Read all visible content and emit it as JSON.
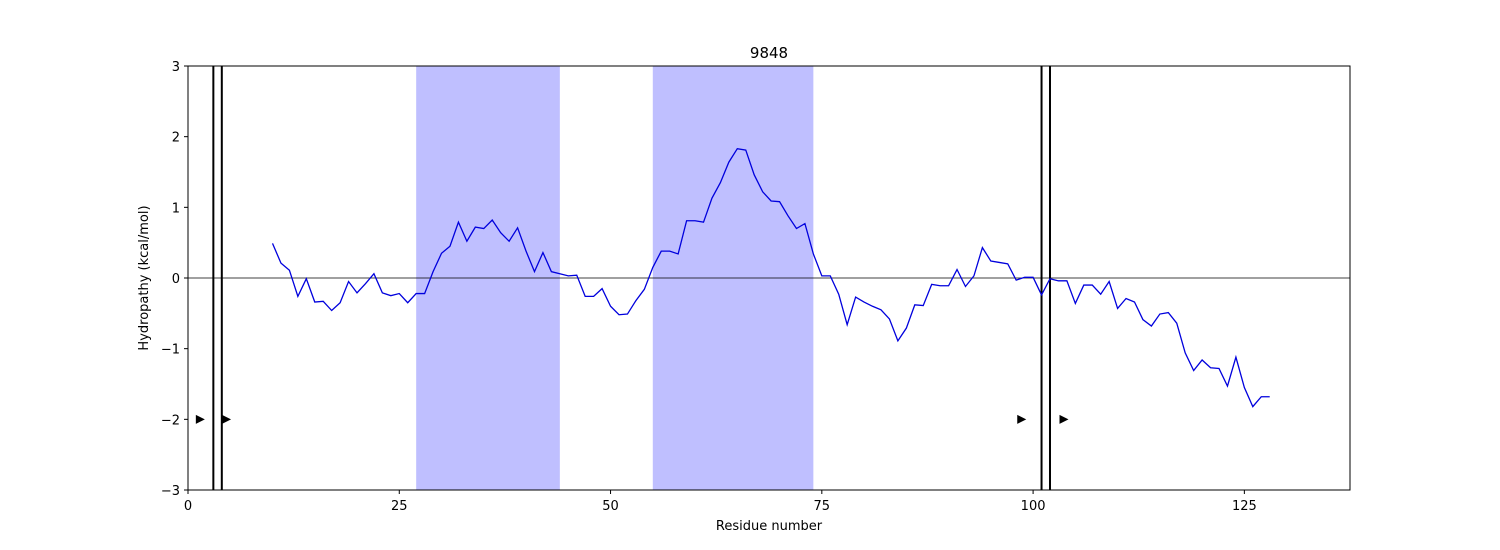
{
  "chart_data": {
    "type": "line",
    "title": "9848",
    "xlabel": "Residue number",
    "ylabel": "Hydropathy (kcal/mol)",
    "xlim": [
      0,
      137.5
    ],
    "ylim": [
      -3,
      3
    ],
    "xticks": [
      0,
      25,
      50,
      75,
      100,
      125
    ],
    "yticks": [
      -3,
      -2,
      -1,
      0,
      1,
      2,
      3
    ],
    "xtick_labels": [
      "0",
      "25",
      "50",
      "75",
      "100",
      "125"
    ],
    "ytick_labels": [
      "−3",
      "−2",
      "−1",
      "0",
      "1",
      "2",
      "3"
    ],
    "grid": false,
    "zero_line": 0,
    "line_color": "#0000dd",
    "region_color": "#bfbfff",
    "shaded_regions": [
      [
        27,
        44
      ],
      [
        55,
        74
      ]
    ],
    "vertical_lines": [
      3,
      4,
      101,
      102
    ],
    "markers": [
      {
        "x": 1.4,
        "y": -2
      },
      {
        "x": 4.5,
        "y": -2
      },
      {
        "x": 98.6,
        "y": -2
      },
      {
        "x": 103.6,
        "y": -2
      }
    ],
    "series": [
      {
        "x": [
          10,
          11,
          12,
          13,
          14,
          15,
          16,
          17,
          18,
          19,
          20,
          21,
          22,
          23,
          24,
          25,
          26,
          27,
          28,
          29,
          30,
          31,
          32,
          33,
          34,
          35,
          36,
          37,
          38,
          39,
          40,
          41,
          42,
          43,
          44,
          45,
          46,
          47,
          48,
          49,
          50,
          51,
          52,
          53,
          54,
          55,
          56,
          57,
          58,
          59,
          60,
          61,
          62,
          63,
          64,
          65,
          66,
          67,
          68,
          69,
          70,
          71,
          72,
          73,
          74,
          75,
          76,
          77,
          78,
          79,
          80,
          81,
          82,
          83,
          84,
          85,
          86,
          87,
          88,
          89,
          90,
          91,
          92,
          93,
          94,
          95,
          96,
          97,
          98,
          99,
          100,
          101,
          102,
          103,
          104,
          105,
          106,
          107,
          108,
          109,
          110,
          111,
          112,
          113,
          114,
          115,
          116,
          117,
          118,
          119,
          120,
          121,
          122,
          123,
          124,
          125,
          126,
          127,
          128
        ],
        "values": [
          0.49,
          0.21,
          0.11,
          -0.26,
          -0.01,
          -0.34,
          -0.33,
          -0.46,
          -0.35,
          -0.05,
          -0.21,
          -0.08,
          0.06,
          -0.21,
          -0.25,
          -0.22,
          -0.35,
          -0.22,
          -0.22,
          0.09,
          0.35,
          0.45,
          0.79,
          0.52,
          0.72,
          0.7,
          0.82,
          0.64,
          0.52,
          0.71,
          0.38,
          0.09,
          0.36,
          0.09,
          0.06,
          0.03,
          0.04,
          -0.26,
          -0.26,
          -0.15,
          -0.4,
          -0.52,
          -0.51,
          -0.32,
          -0.16,
          0.15,
          0.38,
          0.38,
          0.34,
          0.81,
          0.81,
          0.79,
          1.13,
          1.35,
          1.64,
          1.83,
          1.81,
          1.46,
          1.22,
          1.09,
          1.08,
          0.88,
          0.7,
          0.77,
          0.34,
          0.03,
          0.03,
          -0.23,
          -0.66,
          -0.27,
          -0.34,
          -0.4,
          -0.45,
          -0.58,
          -0.89,
          -0.71,
          -0.38,
          -0.39,
          -0.09,
          -0.11,
          -0.11,
          0.12,
          -0.12,
          0.03,
          0.43,
          0.24,
          0.22,
          0.2,
          -0.03,
          0.01,
          0.01,
          -0.24,
          -0.01,
          -0.04,
          -0.04,
          -0.36,
          -0.1,
          -0.1,
          -0.23,
          -0.05,
          -0.43,
          -0.29,
          -0.34,
          -0.59,
          -0.68,
          -0.51,
          -0.49,
          -0.64,
          -1.06,
          -1.31,
          -1.16,
          -1.27,
          -1.28,
          -1.53,
          -1.12,
          -1.55,
          -1.82,
          -1.68,
          -1.68
        ]
      }
    ]
  }
}
